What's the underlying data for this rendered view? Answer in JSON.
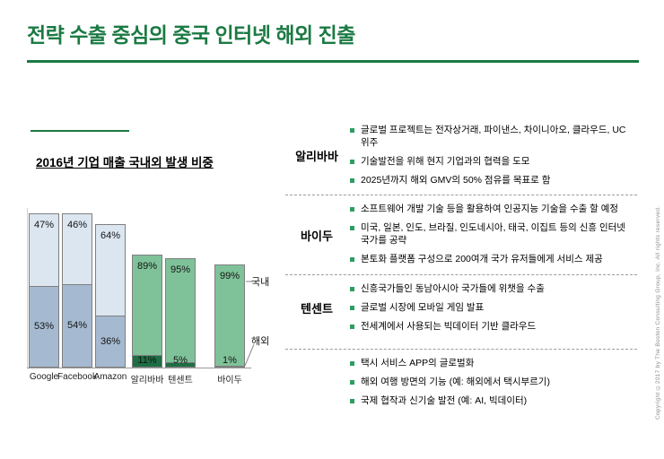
{
  "slide": {
    "title": "전략 수출 중심의 중국 인터넷 해외 진출",
    "copyright": "Copyright ©2017 by The Boston Consulting Group, Inc. All rights reserved."
  },
  "colors": {
    "accent_green": "#1b7a43",
    "bullet_green": "#2e9d63",
    "us_top": "#dce6f1",
    "us_bottom": "#a5bad0",
    "cn_top": "#7fc299",
    "cn_bottom": "#1e6e44"
  },
  "chart": {
    "title": "2016년 기업 매출 국내외 발생 비중",
    "labels": {
      "domestic": "국내",
      "overseas": "해외"
    },
    "chart_data": {
      "type": "bar",
      "subtype": "stacked-percent",
      "title": "2016년 기업 매출 국내외 발생 비중",
      "categories": [
        "Google",
        "Facebook",
        "Amazon",
        "알리바바",
        "텐센트",
        "바이두"
      ],
      "series": [
        {
          "name": "국내",
          "values": [
            47,
            46,
            64,
            89,
            95,
            99
          ]
        },
        {
          "name": "해외",
          "values": [
            53,
            54,
            36,
            11,
            5,
            1
          ]
        }
      ],
      "value_suffix": "%",
      "groups": [
        "us",
        "us",
        "us",
        "cn",
        "cn",
        "cn"
      ],
      "legend_position": "right",
      "grid": false,
      "ylim": [
        0,
        100
      ]
    }
  },
  "table": {
    "rows": [
      {
        "company": "알리바바",
        "bullets": [
          "글로벌 프로젝트는 전자상거래, 파이낸스, 차이니아오, 클라우드, UC 위주",
          "기술발전을 위해 현지 기업과의 협력을 도모",
          "2025년까지 해외 GMV의 50% 점유를 목표로 함"
        ]
      },
      {
        "company": "바이두",
        "bullets": [
          "소프트웨어 개발 기술 등을 활용하여 인공지능 기술을 수출 할 예정",
          "미국, 일본, 인도, 브라질, 인도네시아, 태국, 이집트 등의 신흥 인터넷 국가를 공략",
          "본토화 플랫폼 구성으로 200여개 국가 유저들에게 서비스 제공"
        ]
      },
      {
        "company": "텐센트",
        "bullets": [
          "신흥국가들인 동남아시아 국가들에 위챗을 수출",
          "글로벌 시장에 모바일 게임 발표",
          "전세계에서 사용되는 빅데이터 기반 클라우드"
        ]
      },
      {
        "company": "",
        "bullets": [
          "택시 서비스 APP의 글로벌화",
          "해외 여행 방면의 기능 (예: 해외에서 택시부르기)",
          "국제 협작과 신기술 발전 (예: AI, 빅데이터)"
        ]
      }
    ]
  }
}
